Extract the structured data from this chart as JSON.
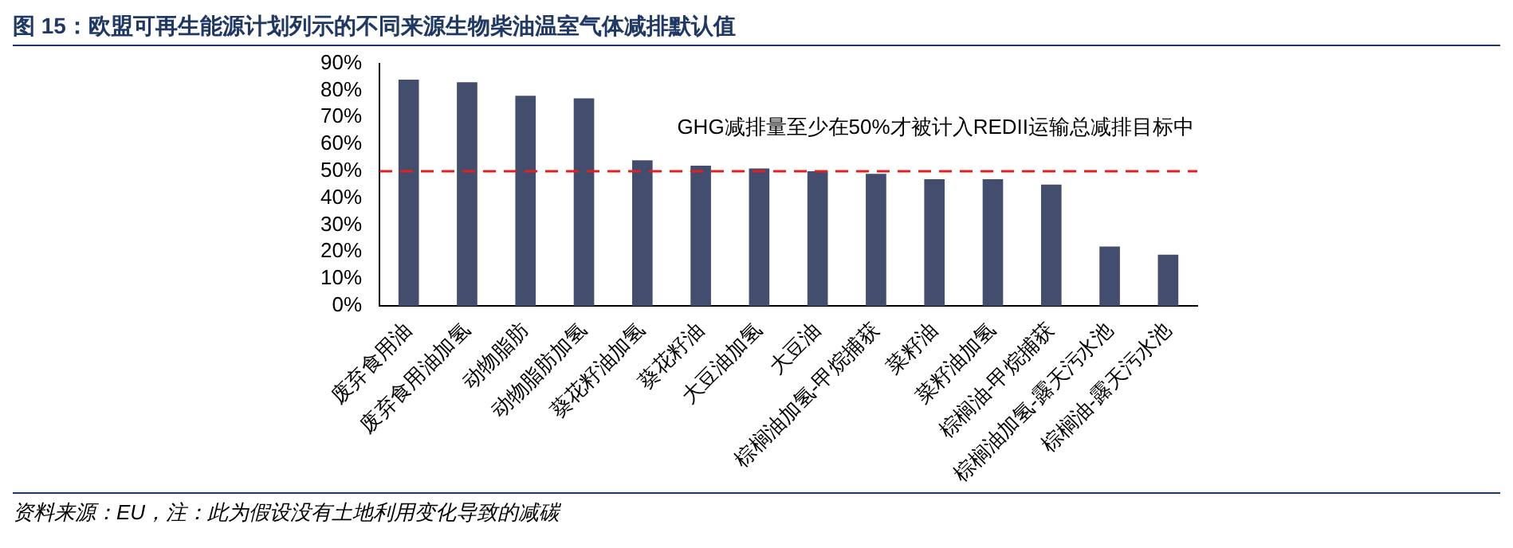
{
  "chart_data": {
    "type": "bar",
    "title": "图 15：欧盟可再生能源计划列示的不同来源生物柴油温室气体减排默认值",
    "categories": [
      "废弃食用油",
      "废弃食用油加氢",
      "动物脂肪",
      "动物脂肪加氢",
      "葵花籽油加氢",
      "葵花籽油",
      "大豆油加氢",
      "大豆油",
      "棕榈油加氢-甲烷捕获",
      "菜籽油",
      "菜籽油加氢",
      "棕榈油-甲烷捕获",
      "棕榈油加氢-露天污水池",
      "棕榈油-露天污水池"
    ],
    "values": [
      84,
      83,
      78,
      77,
      54,
      52,
      51,
      50,
      49,
      47,
      47,
      45,
      22,
      19
    ],
    "color": "#434e6e",
    "ylim": [
      0,
      90
    ],
    "yticks": [
      {
        "value": 0,
        "label": "0%"
      },
      {
        "value": 10,
        "label": "10%"
      },
      {
        "value": 20,
        "label": "20%"
      },
      {
        "value": 30,
        "label": "30%"
      },
      {
        "value": 40,
        "label": "40%"
      },
      {
        "value": 50,
        "label": "50%"
      },
      {
        "value": 60,
        "label": "60%"
      },
      {
        "value": 70,
        "label": "70%"
      },
      {
        "value": 80,
        "label": "80%"
      },
      {
        "value": 90,
        "label": "90%"
      }
    ],
    "ref_lines": [
      {
        "axis": "y",
        "value": 50,
        "label": "GHG减排量至少在50%才被计入REDII运输总减排目标中",
        "color": "#e02020",
        "line_style": "dashed"
      }
    ],
    "annotations": [
      "资料来源：EU，注：此为假设没有土地利用变化导致的减碳"
    ],
    "grid": false,
    "legend": false
  }
}
